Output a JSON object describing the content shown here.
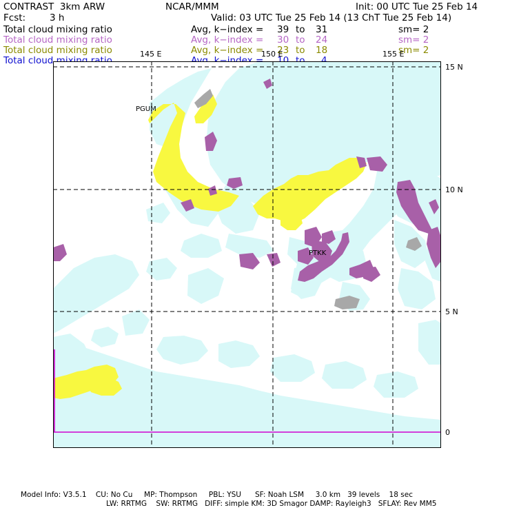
{
  "header": {
    "model": "CONTRAST  3km ARW",
    "org": "NCAR/MMM",
    "init": "Init: 00 UTC Tue 25 Feb 14",
    "fcst_label": "Fcst:",
    "fcst_value": "3 h",
    "valid": "Valid: 03 UTC Tue 25 Feb 14 (13 ChT Tue 25 Feb 14)"
  },
  "fields": [
    {
      "name": "Total cloud mixing ratio",
      "avg": "Avg, k−index =",
      "k_from": "39",
      "to": "to",
      "k_to": "31",
      "sm": "sm= 2",
      "color": "#000000"
    },
    {
      "name": "Total cloud mixing ratio",
      "avg": "Avg, k−index =",
      "k_from": "30",
      "to": "to",
      "k_to": "24",
      "sm": "sm= 2",
      "color": "#b566c4"
    },
    {
      "name": "Total cloud mixing ratio",
      "avg": "Avg, k−index =",
      "k_from": "23",
      "to": "to",
      "k_to": "18",
      "sm": "sm= 2",
      "color": "#8a8a00"
    },
    {
      "name": "Total cloud mixing ratio",
      "avg": "Avg, k−index =",
      "k_from": "10",
      "to": "to",
      "k_to": "4",
      "sm": "",
      "color": "#1010d0"
    }
  ],
  "map": {
    "lon_labels": [
      "145 E",
      "150 E",
      "155 E"
    ],
    "lat_labels": [
      "15 N",
      "10 N",
      "5 N",
      "0"
    ],
    "stations": [
      "PGUM",
      "PTKK"
    ],
    "layer_colors": {
      "low_cloud": "#d8f8f8",
      "mid_cloud": "#f8f840",
      "high_cloud": "#a860a8",
      "highest_cloud": "#a8a8a8",
      "equator_line": "#d000d0"
    }
  },
  "footer": {
    "line1": "Model Info: V3.5.1    CU: No Cu     MP: Thompson     PBL: YSU      SF: Noah LSM     3.0 km   39 levels    18 sec",
    "line2": "LW: RRTMG    SW: RRTMG   DIFF: simple KM: 3D Smagor DAMP: Rayleigh3   SFLAY: Rev MM5"
  }
}
